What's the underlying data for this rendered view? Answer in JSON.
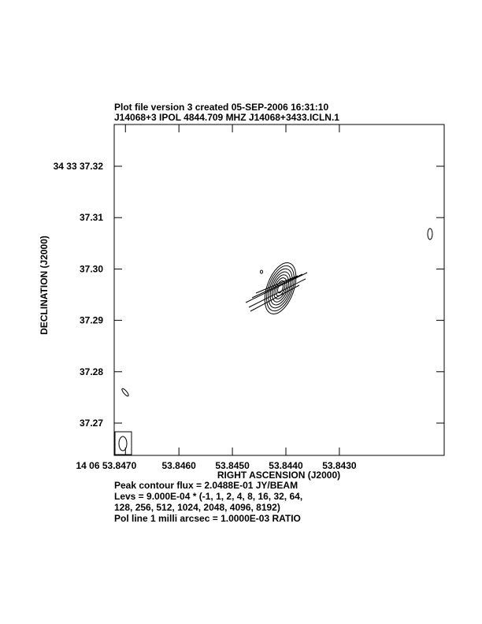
{
  "chart_data": {
    "type": "contour",
    "title": [
      "Plot file version 3  created 05-SEP-2006 16:31:10",
      "J14068+3  IPOL  4844.709 MHZ  J14068+3433.ICLN.1"
    ],
    "xlabel": "RIGHT ASCENSION (J2000)",
    "ylabel": "DECLINATION (J2000)",
    "xlim": [
      53.84721,
      53.84104
    ],
    "ylim": [
      37.26371,
      37.32813
    ],
    "xticks": [
      {
        "value": 53.847,
        "label": "14 06 53.8470"
      },
      {
        "value": 53.846,
        "label": "53.8460"
      },
      {
        "value": 53.845,
        "label": "53.8450"
      },
      {
        "value": 53.844,
        "label": "53.8440"
      },
      {
        "value": 53.843,
        "label": "53.8430"
      }
    ],
    "yticks": [
      {
        "value": 37.32,
        "label": "34 33 37.32"
      },
      37.31,
      {
        "value": 37.3,
        "label": "37.30"
      },
      37.29,
      37.28,
      37.27
    ],
    "notes": [
      "Peak contour flux =  2.0488E-01 JY/BEAM",
      "Levs = 9.000E-04 * (-1, 1, 2, 4, 8, 16, 32, 64,",
      "128, 256, 512, 1024, 2048, 4096, 8192)",
      "Pol line 1 milli arcsec =  1.0000E-03 RATIO"
    ]
  }
}
